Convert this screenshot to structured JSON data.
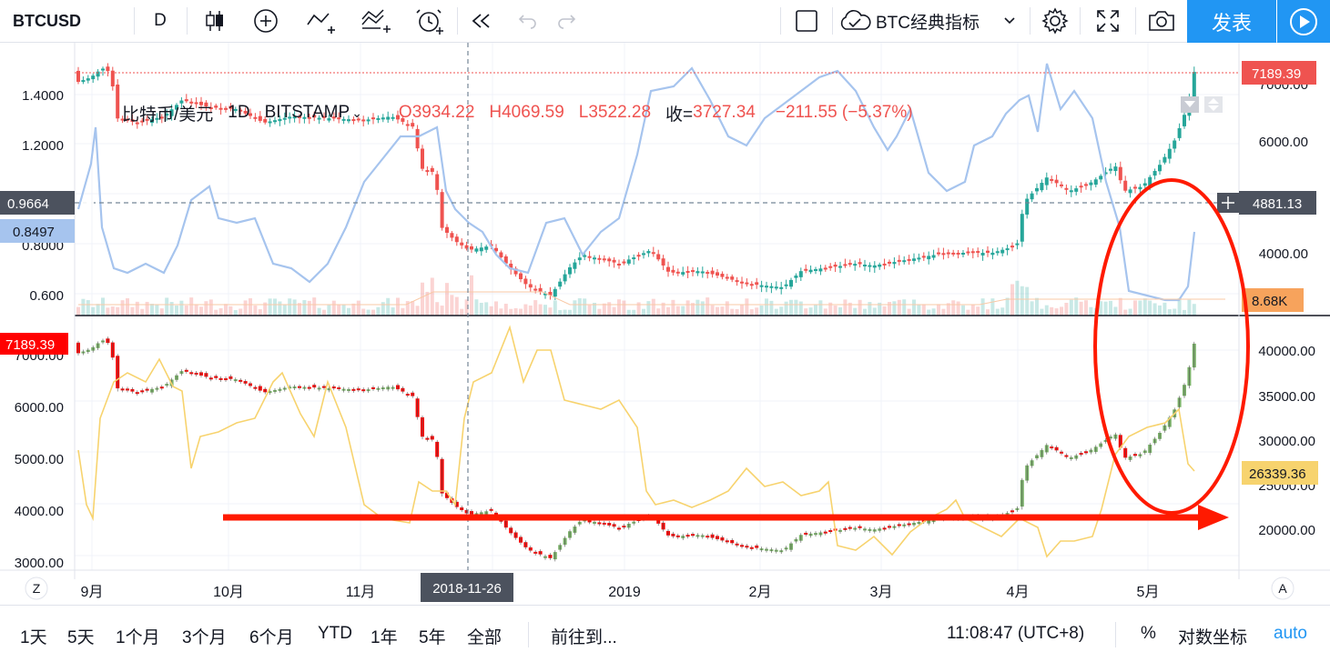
{
  "toolbar": {
    "symbol": "BTCUSD",
    "interval": "D",
    "indicator_label": "BTC经典指标",
    "publish_label": "发表"
  },
  "legend": {
    "name": "比特币/美元",
    "interval": "1D",
    "exchange": "BITSTAMP",
    "open": "O3934.22",
    "high": "H4069.59",
    "low": "L3522.28",
    "close_label": "收=",
    "close": "3727.34",
    "change": "−211.55 (−5.37%)"
  },
  "top_pane": {
    "left_axis_ticks": [
      "1.4000",
      "1.2000",
      "0.8000",
      "0.600"
    ],
    "right_axis_ticks": [
      "7000.00",
      "6000.00",
      "4000.00"
    ],
    "crosshair_left_label": "0.9664",
    "crosshair_right_label": "4881.13",
    "blue_line_label": "0.8497",
    "price_label": "7189.39",
    "volume_label": "8.68K"
  },
  "bottom_pane": {
    "left_axis_ticks": [
      "7000.00",
      "6000.00",
      "5000.00",
      "4000.00",
      "3000.00"
    ],
    "right_axis_ticks": [
      "40000.00",
      "35000.00",
      "30000.00",
      "25000.00",
      "20000.00"
    ],
    "price_label": "7189.39",
    "yellow_line_label": "26339.36"
  },
  "time_axis": {
    "labels": [
      "9月",
      "10月",
      "11月",
      "2019",
      "2月",
      "3月",
      "4月",
      "5月"
    ],
    "crosshair_date": "2018-11-26",
    "left_button": "Z",
    "right_button": "A"
  },
  "bottom_bar": {
    "ranges": [
      "1天",
      "5天",
      "1个月",
      "3个月",
      "6个月",
      "YTD",
      "1年",
      "5年",
      "全部"
    ],
    "goto": "前往到...",
    "clock": "11:08:47 (UTC+8)",
    "percent": "%",
    "log_scale": "对数坐标",
    "auto": "auto"
  },
  "colors": {
    "up": "#26a69a",
    "down": "#ef5350",
    "blue_line": "#a6c4ee",
    "yellow_line": "#f7d36e",
    "accent": "#2196f3",
    "annotation": "#ff1a00"
  },
  "icons": [
    "candlestick-icon",
    "plus-circle-icon",
    "indicator-icon",
    "compare-icon",
    "alarm-icon",
    "replay-icon",
    "undo-icon",
    "redo-icon",
    "square-icon",
    "cloud-icon",
    "chevron-down-icon",
    "gear-icon",
    "fullscreen-icon",
    "camera-icon",
    "play-icon"
  ]
}
